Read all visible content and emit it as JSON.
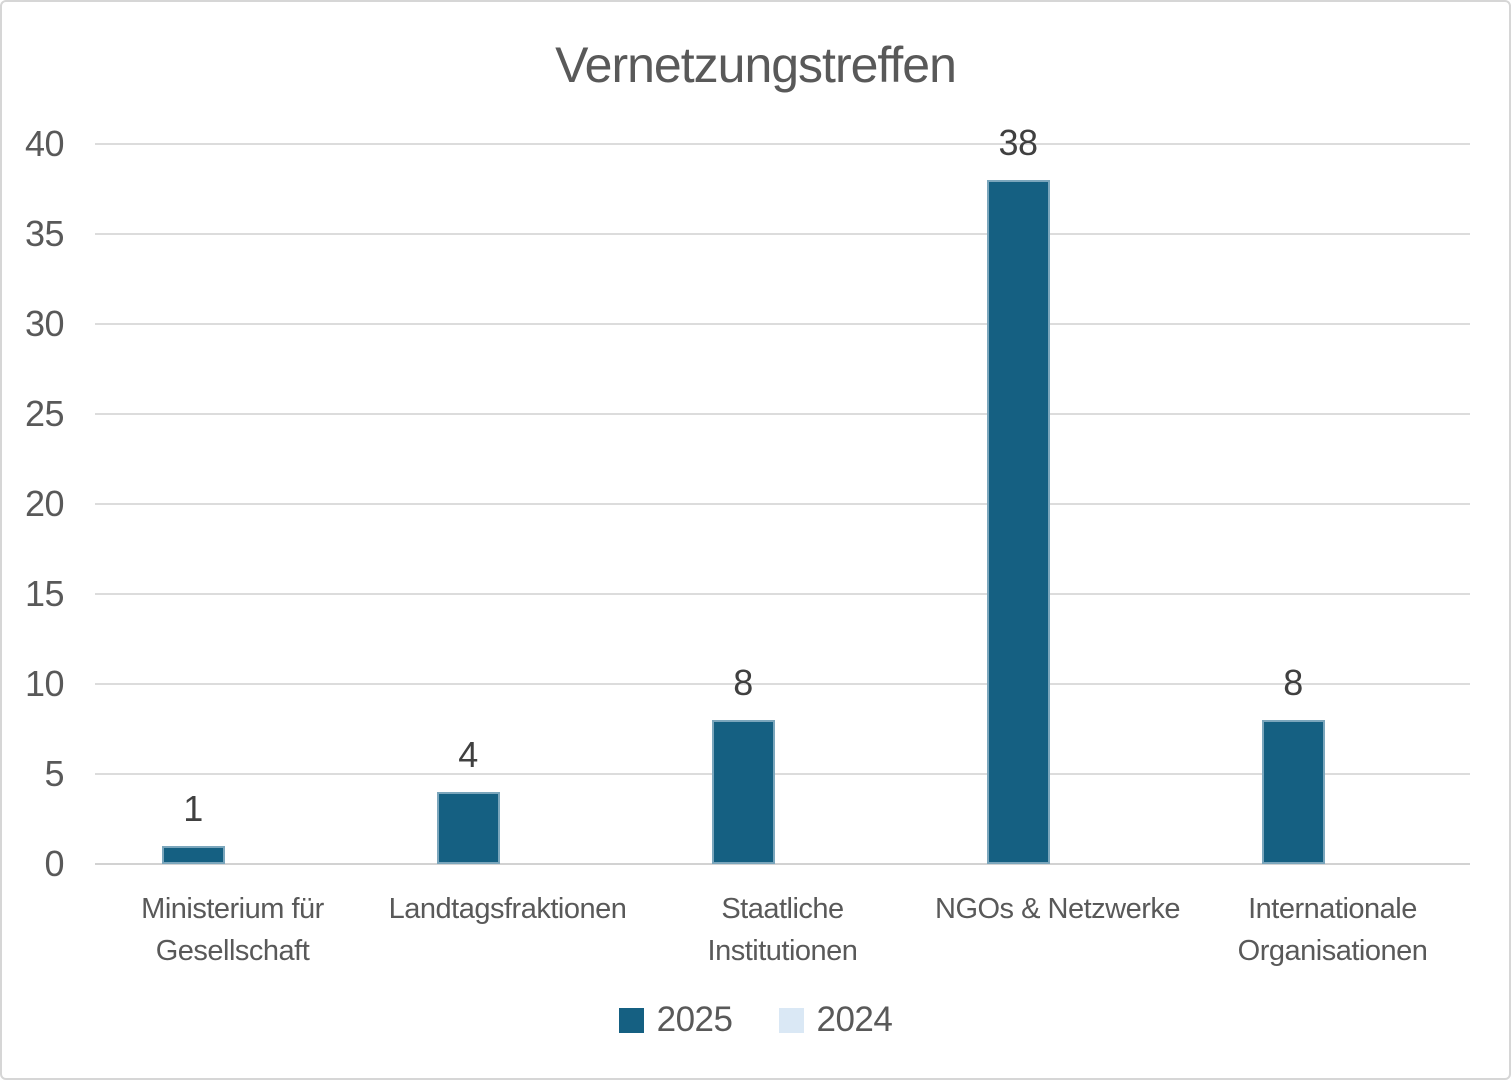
{
  "chart_data": {
    "type": "bar",
    "title": "Vernetzungstreffen",
    "categories": [
      "Ministerium für\nGesellschaft",
      "Landtagsfraktionen",
      "Staatliche\nInstitutionen",
      "NGOs & Netzwerke",
      "Internationale\nOrganisationen"
    ],
    "series": [
      {
        "name": "2025",
        "color": "#156082",
        "values": [
          1,
          4,
          8,
          38,
          8
        ]
      },
      {
        "name": "2024",
        "color": "#DAE8F5",
        "values": [
          null,
          null,
          null,
          null,
          null
        ]
      }
    ],
    "ylim": [
      0,
      40
    ],
    "yticks": [
      0,
      5,
      10,
      15,
      20,
      25,
      30,
      35,
      40
    ],
    "grid": true,
    "legend_position": "bottom",
    "xlabel": "",
    "ylabel": ""
  },
  "style": {
    "bar_fill": "#156082",
    "bar_border": "#7BA6BC",
    "series2024_fill": "#DAE8F5",
    "text_color": "#595959",
    "data_label_color": "#404040",
    "gridline_color": "#DCDCDC",
    "axis_line_color": "#D2D2D2",
    "chart_border": "#D6D6D6",
    "background": "#FFFFFF"
  }
}
